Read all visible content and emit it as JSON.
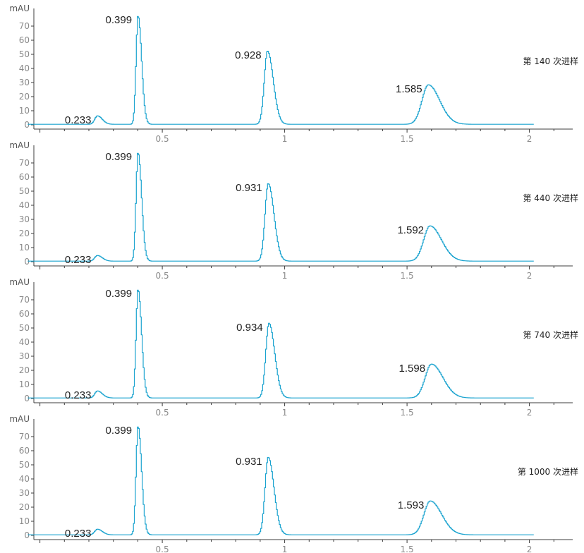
{
  "colors": {
    "trace": "#1aa3cf",
    "axis": "#3c3c3c",
    "tick_text": "#8a8a8a",
    "peak_text": "#222222",
    "peak_text_muted": "#8a8a8a"
  },
  "chart_data": [
    {
      "type": "line",
      "ylabel": "mAU",
      "ylim": [
        0,
        75
      ],
      "xlim": [
        -0.1,
        2.1
      ],
      "yticks": [
        0,
        10,
        20,
        30,
        40,
        50,
        60,
        70
      ],
      "xticks": [
        0.5,
        1,
        1.5,
        2
      ],
      "xtick_labels": [
        "0.5",
        "1",
        "1.5",
        "2"
      ],
      "annotation": "第 140 次进样",
      "peaks": [
        {
          "label": "0.233",
          "rt": 0.233,
          "height": 6,
          "width": 0.011
        },
        {
          "label": "0.399",
          "rt": 0.399,
          "height": 77,
          "width": 0.008
        },
        {
          "label": "0.928",
          "rt": 0.928,
          "height": 52,
          "width": 0.013
        },
        {
          "label": "1.585",
          "rt": 1.585,
          "height": 28,
          "width": 0.026
        }
      ]
    },
    {
      "type": "line",
      "ylabel": "mAU",
      "ylim": [
        0,
        75
      ],
      "xlim": [
        -0.1,
        2.1
      ],
      "yticks": [
        0,
        10,
        20,
        30,
        40,
        50,
        60,
        70
      ],
      "xticks": [
        0.5,
        1,
        1.5,
        2
      ],
      "xtick_labels": [
        "0.5",
        "1",
        "1.5",
        "2"
      ],
      "annotation": "第 440 次进样",
      "peaks": [
        {
          "label": "0.233",
          "rt": 0.233,
          "height": 4,
          "width": 0.011
        },
        {
          "label": "0.399",
          "rt": 0.399,
          "height": 77,
          "width": 0.008
        },
        {
          "label": "0.931",
          "rt": 0.931,
          "height": 55,
          "width": 0.013
        },
        {
          "label": "1.592",
          "rt": 1.592,
          "height": 25,
          "width": 0.026
        }
      ]
    },
    {
      "type": "line",
      "ylabel": "mAU",
      "ylim": [
        0,
        75
      ],
      "xlim": [
        -0.1,
        2.1
      ],
      "yticks": [
        0,
        10,
        20,
        30,
        40,
        50,
        60,
        70
      ],
      "xticks": [
        0.5,
        1,
        1.5,
        2
      ],
      "xtick_labels": [
        "0.5",
        "1",
        "1.5",
        "2"
      ],
      "annotation": "第 740 次进样",
      "peaks": [
        {
          "label": "0.233",
          "rt": 0.233,
          "height": 5,
          "width": 0.011
        },
        {
          "label": "0.399",
          "rt": 0.399,
          "height": 77,
          "width": 0.008
        },
        {
          "label": "0.934",
          "rt": 0.934,
          "height": 53,
          "width": 0.013
        },
        {
          "label": "1.598",
          "rt": 1.598,
          "height": 24,
          "width": 0.026
        }
      ]
    },
    {
      "type": "line",
      "ylabel": "mAU",
      "ylim": [
        0,
        75
      ],
      "xlim": [
        -0.1,
        2.1
      ],
      "yticks": [
        0,
        10,
        20,
        30,
        40,
        50,
        60,
        70
      ],
      "xticks": [
        0.5,
        1,
        1.5,
        2
      ],
      "xtick_labels": [
        "0.5",
        "1",
        "1.5",
        "2"
      ],
      "annotation": "第 1000 次进样",
      "peaks": [
        {
          "label": "0.233",
          "rt": 0.233,
          "height": 4,
          "width": 0.011
        },
        {
          "label": "0.399",
          "rt": 0.399,
          "height": 77,
          "width": 0.008,
          "muted": true
        },
        {
          "label": "0.931",
          "rt": 0.931,
          "height": 55,
          "width": 0.013
        },
        {
          "label": "1.593",
          "rt": 1.593,
          "height": 24,
          "width": 0.026
        }
      ]
    }
  ]
}
